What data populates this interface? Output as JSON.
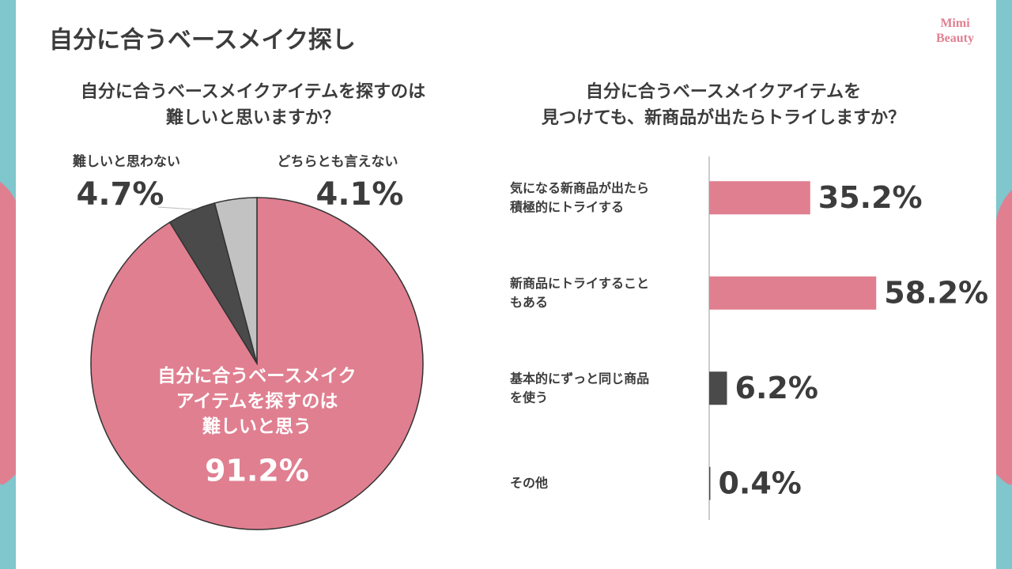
{
  "header": {
    "title": "自分に合うベースメイク探し",
    "logo": "Mimi\nBeauty"
  },
  "chart_data": [
    {
      "type": "pie",
      "title": "自分に合うベースメイクアイテムを探すのは\n難しいと思いますか？",
      "categories": [
        "自分に合うベースメイク\nアイテムを探すのは\n難しいと思う",
        "難しいと思わない",
        "どちらとも言えない"
      ],
      "values": [
        91.2,
        4.7,
        4.1
      ],
      "value_labels": [
        "91.2%",
        "4.7%",
        "4.1%"
      ],
      "colors": [
        "#e07f90",
        "#4a4a4a",
        "#c2c2c2"
      ]
    },
    {
      "type": "hbar",
      "title": "自分に合うベースメイクアイテムを\n見つけても、新商品が出たらトライしますか？",
      "categories": [
        "気になる新商品が出たら\n積極的にトライする",
        "新商品にトライすること\nもある",
        "基本的にずっと同じ商品\nを使う",
        "その他"
      ],
      "values": [
        35.2,
        58.2,
        6.2,
        0.4
      ],
      "value_labels": [
        "35.2%",
        "58.2%",
        "6.2%",
        "0.4%"
      ],
      "colors": [
        "#e07f90",
        "#e07f90",
        "#4a4a4a",
        "#4a4a4a"
      ]
    }
  ]
}
